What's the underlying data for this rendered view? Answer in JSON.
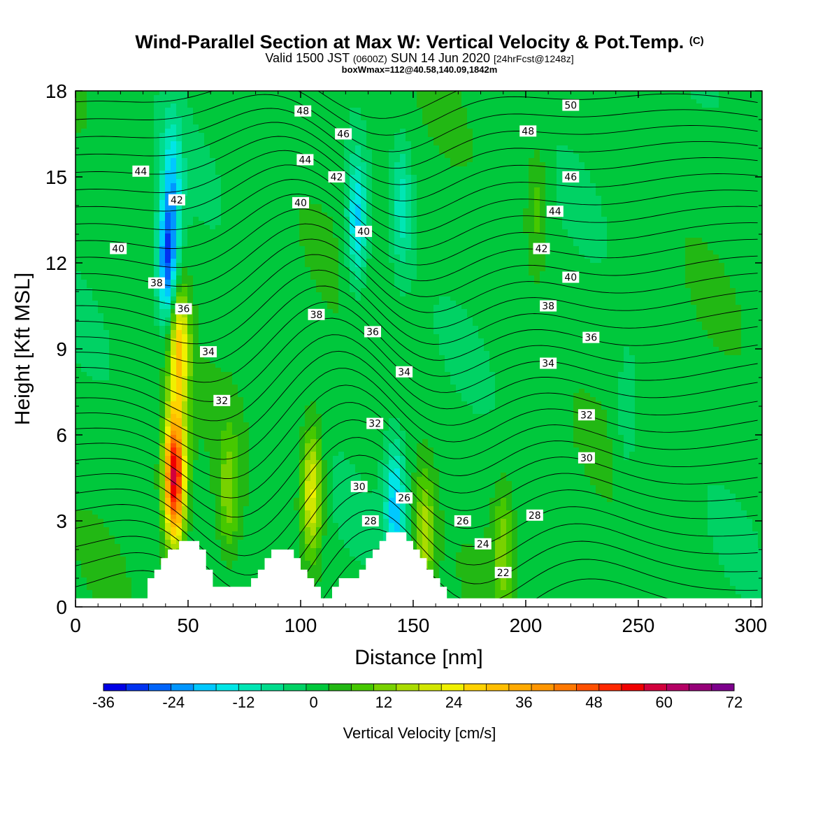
{
  "header": {
    "title": "Wind-Parallel Section at Max W: Vertical Velocity & Pot.Temp.",
    "copyright": "(C)",
    "valid_prefix": "Valid 1500 JST",
    "valid_utc": "(0600Z)",
    "valid_date": "SUN 14 Jun 2020",
    "forecast_info": "[24hrFcst@1248z]",
    "box_info": "boxWmax=112@40.58,140.09,1842m"
  },
  "chart_data": {
    "type": "heatmap",
    "title": "Wind-Parallel Section at Max W: Vertical Velocity & Pot.Temp.",
    "xlabel": "Distance [nm]",
    "ylabel": "Height [Kft MSL]",
    "xlim": [
      0,
      305
    ],
    "ylim": [
      0,
      18
    ],
    "x_ticks": [
      0,
      50,
      100,
      150,
      200,
      250,
      300
    ],
    "y_ticks": [
      0,
      3,
      6,
      9,
      12,
      15,
      18
    ],
    "colorbar": {
      "label": "Vertical Velocity [cm/s]",
      "min": -36,
      "max": 72,
      "step": 4,
      "tick_labels": [
        "-36",
        "-24",
        "-12",
        "0",
        "12",
        "24",
        "36",
        "48",
        "60",
        "72"
      ],
      "colors": [
        "#0000e6",
        "#0032f0",
        "#0064fa",
        "#0096ff",
        "#00c8ff",
        "#00e6e6",
        "#00e6b4",
        "#00dc8c",
        "#00d264",
        "#00c83c",
        "#22b814",
        "#46c800",
        "#78d200",
        "#aadc00",
        "#d2e600",
        "#f0f000",
        "#ffd200",
        "#ffbe00",
        "#ffaa00",
        "#ff9600",
        "#ff7800",
        "#ff5000",
        "#ff2800",
        "#f00000",
        "#d2003c",
        "#b40064",
        "#960078",
        "#7d008c"
      ]
    },
    "vertical_velocity_features": [
      {
        "x": 44,
        "y": 4.5,
        "value": 60
      },
      {
        "x": 46,
        "y": 9.0,
        "value": 30
      },
      {
        "x": 41,
        "y": 12.0,
        "value": -30
      },
      {
        "x": 43,
        "y": 15.0,
        "value": -16
      },
      {
        "x": 105,
        "y": 4.0,
        "value": 24
      },
      {
        "x": 68,
        "y": 4.0,
        "value": 12
      },
      {
        "x": 142,
        "y": 3.5,
        "value": -20
      },
      {
        "x": 155,
        "y": 2.5,
        "value": 16
      },
      {
        "x": 190,
        "y": 2.0,
        "value": 12
      },
      {
        "x": 145,
        "y": 14.0,
        "value": -12
      },
      {
        "x": 125,
        "y": 13.5,
        "value": -20
      },
      {
        "x": 245,
        "y": 6.5,
        "value": -6
      },
      {
        "x": 205,
        "y": 14.0,
        "value": 8
      }
    ],
    "theta_contours": {
      "levels": [
        22,
        24,
        26,
        28,
        30,
        32,
        34,
        36,
        38,
        40,
        42,
        44,
        46,
        48,
        50
      ],
      "labels": [
        {
          "text": "44",
          "x": 29,
          "y": 15.2
        },
        {
          "text": "42",
          "x": 45,
          "y": 14.2
        },
        {
          "text": "40",
          "x": 19,
          "y": 12.5
        },
        {
          "text": "38",
          "x": 36,
          "y": 11.3
        },
        {
          "text": "36",
          "x": 48,
          "y": 10.4
        },
        {
          "text": "34",
          "x": 59,
          "y": 8.9
        },
        {
          "text": "32",
          "x": 65,
          "y": 7.2
        },
        {
          "text": "48",
          "x": 101,
          "y": 17.3
        },
        {
          "text": "46",
          "x": 119,
          "y": 16.5
        },
        {
          "text": "44",
          "x": 102,
          "y": 15.6
        },
        {
          "text": "42",
          "x": 116,
          "y": 15.0
        },
        {
          "text": "40",
          "x": 100,
          "y": 14.1
        },
        {
          "text": "40",
          "x": 128,
          "y": 13.1
        },
        {
          "text": "38",
          "x": 107,
          "y": 10.2
        },
        {
          "text": "36",
          "x": 132,
          "y": 9.6
        },
        {
          "text": "34",
          "x": 146,
          "y": 8.2
        },
        {
          "text": "32",
          "x": 133,
          "y": 6.4
        },
        {
          "text": "30",
          "x": 126,
          "y": 4.2
        },
        {
          "text": "28",
          "x": 131,
          "y": 3.0
        },
        {
          "text": "26",
          "x": 146,
          "y": 3.8
        },
        {
          "text": "50",
          "x": 220,
          "y": 17.5
        },
        {
          "text": "48",
          "x": 201,
          "y": 16.6
        },
        {
          "text": "46",
          "x": 220,
          "y": 15.0
        },
        {
          "text": "44",
          "x": 213,
          "y": 13.8
        },
        {
          "text": "42",
          "x": 207,
          "y": 12.5
        },
        {
          "text": "40",
          "x": 220,
          "y": 11.5
        },
        {
          "text": "38",
          "x": 210,
          "y": 10.5
        },
        {
          "text": "36",
          "x": 229,
          "y": 9.4
        },
        {
          "text": "34",
          "x": 210,
          "y": 8.5
        },
        {
          "text": "32",
          "x": 227,
          "y": 6.7
        },
        {
          "text": "30",
          "x": 227,
          "y": 5.2
        },
        {
          "text": "28",
          "x": 204,
          "y": 3.2
        },
        {
          "text": "26",
          "x": 172,
          "y": 3.0
        },
        {
          "text": "24",
          "x": 181,
          "y": 2.2
        },
        {
          "text": "22",
          "x": 190,
          "y": 1.2
        }
      ]
    },
    "terrain": [
      [
        0,
        0.3
      ],
      [
        32,
        0.3
      ],
      [
        32,
        1.0
      ],
      [
        35,
        1.0
      ],
      [
        35,
        1.3
      ],
      [
        38,
        1.3
      ],
      [
        38,
        1.7
      ],
      [
        41,
        1.7
      ],
      [
        41,
        2.0
      ],
      [
        46,
        2.0
      ],
      [
        46,
        2.3
      ],
      [
        55,
        2.3
      ],
      [
        55,
        2.0
      ],
      [
        58,
        2.0
      ],
      [
        58,
        1.3
      ],
      [
        61,
        1.3
      ],
      [
        61,
        0.7
      ],
      [
        78,
        0.7
      ],
      [
        78,
        1.0
      ],
      [
        81,
        1.0
      ],
      [
        81,
        1.3
      ],
      [
        84,
        1.3
      ],
      [
        84,
        1.7
      ],
      [
        87,
        1.7
      ],
      [
        87,
        2.0
      ],
      [
        97,
        2.0
      ],
      [
        97,
        1.7
      ],
      [
        100,
        1.7
      ],
      [
        100,
        1.3
      ],
      [
        103,
        1.3
      ],
      [
        103,
        1.0
      ],
      [
        106,
        1.0
      ],
      [
        106,
        0.7
      ],
      [
        109,
        0.7
      ],
      [
        109,
        0.3
      ],
      [
        114,
        0.3
      ],
      [
        114,
        0.7
      ],
      [
        117,
        0.7
      ],
      [
        117,
        1.0
      ],
      [
        126,
        1.0
      ],
      [
        126,
        1.3
      ],
      [
        129,
        1.3
      ],
      [
        129,
        1.7
      ],
      [
        132,
        1.7
      ],
      [
        132,
        2.0
      ],
      [
        135,
        2.0
      ],
      [
        135,
        2.3
      ],
      [
        138,
        2.3
      ],
      [
        138,
        2.6
      ],
      [
        147,
        2.6
      ],
      [
        147,
        2.3
      ],
      [
        150,
        2.3
      ],
      [
        150,
        2.0
      ],
      [
        153,
        2.0
      ],
      [
        153,
        1.7
      ],
      [
        156,
        1.7
      ],
      [
        156,
        1.3
      ],
      [
        159,
        1.3
      ],
      [
        159,
        1.0
      ],
      [
        162,
        1.0
      ],
      [
        162,
        0.7
      ],
      [
        165,
        0.7
      ],
      [
        165,
        0.3
      ],
      [
        305,
        0.3
      ]
    ]
  }
}
